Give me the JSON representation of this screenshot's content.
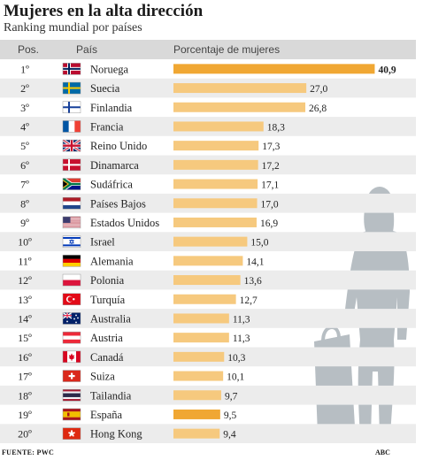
{
  "title": "Mujeres en la alta dirección",
  "subtitle": "Ranking mundial por países",
  "source": "FUENTE: PWC",
  "brand": "ABC",
  "colors": {
    "header_bg": "#d9d9d9",
    "row_alt": "#ececec",
    "bar": "#f6c97e",
    "bar_highlight": "#f0a733",
    "silhouette": "#b7bec3"
  },
  "chart_data": {
    "type": "bar",
    "orientation": "horizontal",
    "columns": [
      "Pos.",
      "País",
      "Porcentaje de mujeres"
    ],
    "xlim": [
      0,
      41
    ],
    "highlight": [
      "Noruega",
      "España"
    ],
    "rows": [
      {
        "pos": "1º",
        "country": "Noruega",
        "value": 40.9,
        "label": "40,9",
        "flag": "norway"
      },
      {
        "pos": "2º",
        "country": "Suecia",
        "value": 27.0,
        "label": "27,0",
        "flag": "sweden"
      },
      {
        "pos": "3º",
        "country": "Finlandia",
        "value": 26.8,
        "label": "26,8",
        "flag": "finland"
      },
      {
        "pos": "4º",
        "country": "Francia",
        "value": 18.3,
        "label": "18,3",
        "flag": "france"
      },
      {
        "pos": "5º",
        "country": "Reino Unido",
        "value": 17.3,
        "label": "17,3",
        "flag": "uk"
      },
      {
        "pos": "6º",
        "country": "Dinamarca",
        "value": 17.2,
        "label": "17,2",
        "flag": "denmark"
      },
      {
        "pos": "7º",
        "country": "Sudáfrica",
        "value": 17.1,
        "label": "17,1",
        "flag": "south-africa"
      },
      {
        "pos": "8º",
        "country": "Países Bajos",
        "value": 17.0,
        "label": "17,0",
        "flag": "netherlands"
      },
      {
        "pos": "9º",
        "country": "Estados Unidos",
        "value": 16.9,
        "label": "16,9",
        "flag": "usa"
      },
      {
        "pos": "10º",
        "country": "Israel",
        "value": 15.0,
        "label": "15,0",
        "flag": "israel"
      },
      {
        "pos": "11º",
        "country": "Alemania",
        "value": 14.1,
        "label": "14,1",
        "flag": "germany"
      },
      {
        "pos": "12º",
        "country": "Polonia",
        "value": 13.6,
        "label": "13,6",
        "flag": "poland"
      },
      {
        "pos": "13º",
        "country": "Turquía",
        "value": 12.7,
        "label": "12,7",
        "flag": "turkey"
      },
      {
        "pos": "14º",
        "country": "Australia",
        "value": 11.3,
        "label": "11,3",
        "flag": "australia"
      },
      {
        "pos": "15º",
        "country": "Austria",
        "value": 11.3,
        "label": "11,3",
        "flag": "austria"
      },
      {
        "pos": "16º",
        "country": "Canadá",
        "value": 10.3,
        "label": "10,3",
        "flag": "canada"
      },
      {
        "pos": "17º",
        "country": "Suiza",
        "value": 10.1,
        "label": "10,1",
        "flag": "switzerland"
      },
      {
        "pos": "18º",
        "country": "Tailandia",
        "value": 9.7,
        "label": "9,7",
        "flag": "thailand"
      },
      {
        "pos": "19º",
        "country": "España",
        "value": 9.5,
        "label": "9,5",
        "flag": "spain"
      },
      {
        "pos": "20º",
        "country": "Hong Kong",
        "value": 9.4,
        "label": "9,4",
        "flag": "hong-kong"
      }
    ]
  }
}
